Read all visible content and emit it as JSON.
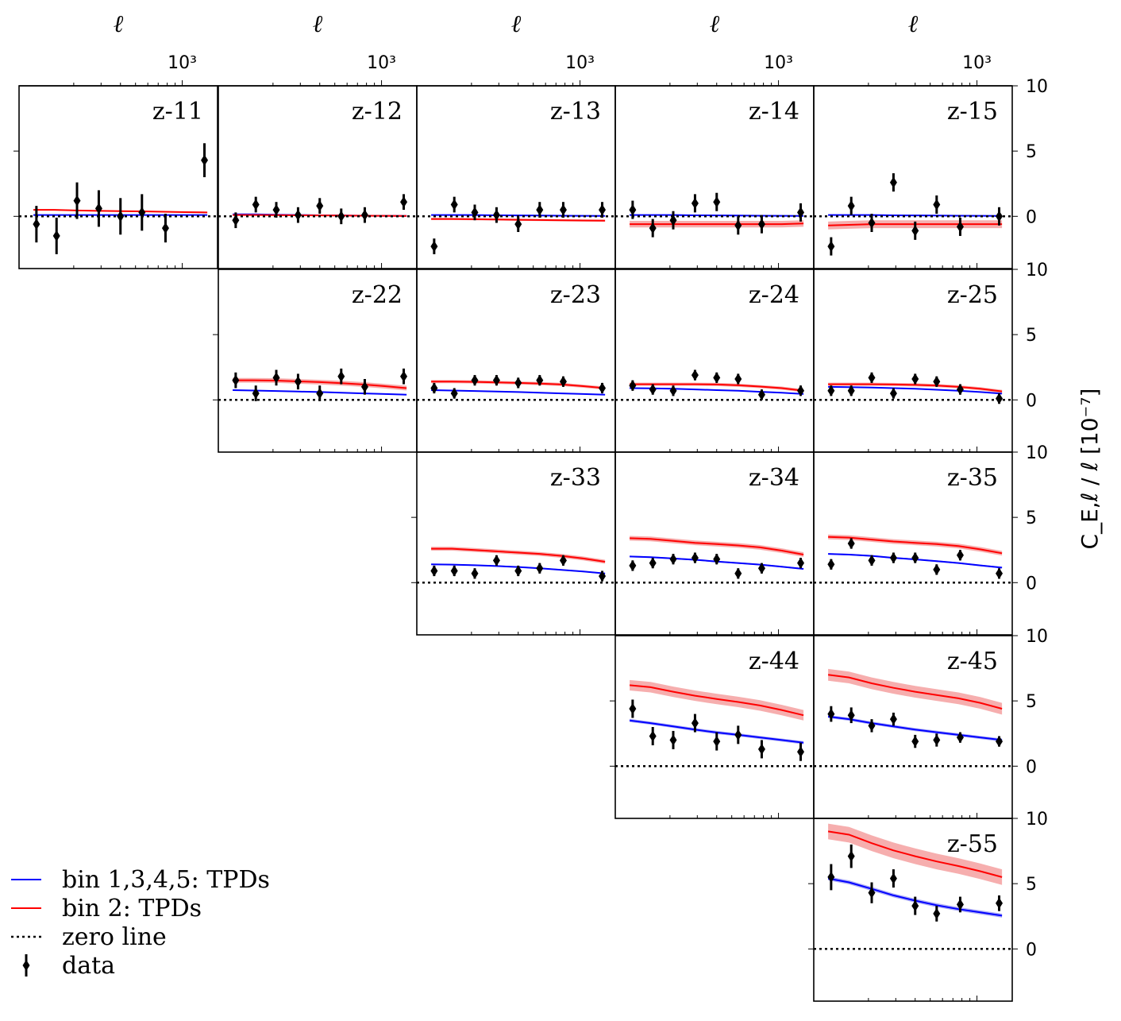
{
  "chart_data": {
    "type": "line",
    "x_scale": "log",
    "x_axis_label": "ℓ",
    "x_tick_label": "10³",
    "y_axis_label": "C_E,ℓ / ℓ [10⁻⁷]",
    "y_ticks": [
      "10",
      "5",
      "0"
    ],
    "x_range": [
      100,
      1500
    ],
    "colors": {
      "blue": "#0000ff",
      "red": "#ff0000",
      "red_band": "#f4a0a0",
      "blue_band": "#a0a0f4",
      "data": "#000000"
    },
    "legend": {
      "placement": "lower-left",
      "entries": [
        {
          "label": "bin 1,3,4,5: TPDs",
          "style": "blue-line"
        },
        {
          "label": "bin 2: TPDs",
          "style": "red-line"
        },
        {
          "label": "zero line",
          "style": "dotted-line"
        },
        {
          "label": "data",
          "style": "errorbar-diamond"
        }
      ]
    },
    "data_x": [
      110,
      150,
      210,
      290,
      400,
      550,
      760,
      1050,
      1450
    ],
    "panels": [
      {
        "id": "z-11",
        "label": "z-11",
        "row": 0,
        "col": 0,
        "theory_color": "red",
        "blue": [
          0.1,
          0.1,
          0.1,
          0.1,
          0.1,
          0.1,
          0.1,
          0.1,
          0.1
        ],
        "red": [
          0.5,
          0.5,
          0.45,
          0.42,
          0.4,
          0.38,
          0.35,
          0.32,
          0.3
        ],
        "red_band": 0.05,
        "blue_band": 0.03,
        "data": [
          -0.6,
          -1.5,
          1.2,
          0.6,
          0.0,
          0.3,
          -0.9,
          4.3
        ],
        "err": [
          1.4,
          1.4,
          1.4,
          1.4,
          1.4,
          1.4,
          1.1,
          1.3
        ]
      },
      {
        "id": "z-12",
        "label": "z-12",
        "row": 0,
        "col": 1,
        "blue": [
          0.15,
          0.15,
          0.12,
          0.1,
          0.08,
          0.07,
          0.05,
          0.04,
          0.03
        ],
        "red": [
          0.1,
          0.1,
          0.09,
          0.08,
          0.07,
          0.06,
          0.05,
          0.04,
          0.03
        ],
        "red_band": 0.05,
        "blue_band": 0.03,
        "data": [
          -0.3,
          0.9,
          0.5,
          0.1,
          0.8,
          0.0,
          0.1,
          1.1
        ],
        "err": [
          0.6,
          0.6,
          0.6,
          0.6,
          0.6,
          0.6,
          0.6,
          0.6
        ]
      },
      {
        "id": "z-13",
        "label": "z-13",
        "row": 0,
        "col": 2,
        "blue": [
          0.1,
          0.1,
          0.1,
          0.08,
          0.07,
          0.06,
          0.05,
          0.04,
          0.03
        ],
        "red": [
          -0.2,
          -0.2,
          -0.22,
          -0.24,
          -0.26,
          -0.28,
          -0.3,
          -0.32,
          -0.33
        ],
        "red_band": 0.08,
        "blue_band": 0.03,
        "data": [
          -2.3,
          0.9,
          0.3,
          0.1,
          -0.6,
          0.5,
          0.5,
          0.5
        ],
        "err": [
          0.6,
          0.6,
          0.6,
          0.6,
          0.6,
          0.6,
          0.6,
          0.6
        ]
      },
      {
        "id": "z-14",
        "label": "z-14",
        "row": 0,
        "col": 3,
        "blue": [
          0.1,
          0.1,
          0.1,
          0.08,
          0.07,
          0.06,
          0.05,
          0.04,
          0.03
        ],
        "red": [
          -0.6,
          -0.6,
          -0.6,
          -0.6,
          -0.6,
          -0.6,
          -0.6,
          -0.6,
          -0.55
        ],
        "red_band": 0.25,
        "blue_band": 0.05,
        "data": [
          0.5,
          -0.9,
          -0.3,
          1.0,
          1.1,
          -0.7,
          -0.6,
          0.3
        ],
        "err": [
          0.7,
          0.7,
          0.7,
          0.7,
          0.7,
          0.7,
          0.7,
          0.7
        ]
      },
      {
        "id": "z-15",
        "label": "z-15",
        "row": 0,
        "col": 4,
        "blue": [
          0.1,
          0.1,
          0.1,
          0.08,
          0.07,
          0.06,
          0.05,
          0.04,
          0.03
        ],
        "red": [
          -0.7,
          -0.65,
          -0.6,
          -0.6,
          -0.6,
          -0.6,
          -0.6,
          -0.6,
          -0.6
        ],
        "red_band": 0.3,
        "blue_band": 0.05,
        "data": [
          -2.3,
          0.8,
          -0.5,
          2.6,
          -1.1,
          0.9,
          -0.8,
          0.0
        ],
        "err": [
          0.7,
          0.7,
          0.7,
          0.7,
          0.7,
          0.7,
          0.7,
          0.7
        ]
      },
      {
        "id": "z-22",
        "label": "z-22",
        "row": 1,
        "col": 1,
        "blue": [
          0.75,
          0.72,
          0.68,
          0.64,
          0.6,
          0.55,
          0.5,
          0.45,
          0.4
        ],
        "red": [
          1.5,
          1.5,
          1.48,
          1.42,
          1.36,
          1.28,
          1.18,
          1.05,
          0.9
        ],
        "red_band": 0.18,
        "blue_band": 0.04,
        "data": [
          1.5,
          0.5,
          1.7,
          1.4,
          0.5,
          1.8,
          1.0,
          1.8
        ],
        "err": [
          0.6,
          0.6,
          0.6,
          0.6,
          0.6,
          0.6,
          0.6,
          0.6
        ]
      },
      {
        "id": "z-23",
        "label": "z-23",
        "row": 1,
        "col": 2,
        "blue": [
          0.75,
          0.72,
          0.68,
          0.64,
          0.6,
          0.55,
          0.5,
          0.45,
          0.4
        ],
        "red": [
          1.4,
          1.4,
          1.38,
          1.34,
          1.3,
          1.25,
          1.18,
          1.05,
          0.9
        ],
        "red_band": 0.12,
        "blue_band": 0.04,
        "data": [
          0.9,
          0.5,
          1.5,
          1.5,
          1.3,
          1.5,
          1.4,
          0.9
        ],
        "err": [
          0.4,
          0.4,
          0.4,
          0.4,
          0.4,
          0.4,
          0.4,
          0.4
        ]
      },
      {
        "id": "z-24",
        "label": "z-24",
        "row": 1,
        "col": 3,
        "blue": [
          0.9,
          0.88,
          0.85,
          0.8,
          0.75,
          0.7,
          0.62,
          0.55,
          0.45
        ],
        "red": [
          1.2,
          1.2,
          1.2,
          1.2,
          1.18,
          1.12,
          1.02,
          0.9,
          0.7
        ],
        "red_band": 0.12,
        "blue_band": 0.04,
        "data": [
          1.1,
          0.8,
          0.7,
          1.9,
          1.7,
          1.6,
          0.4,
          0.7
        ],
        "err": [
          0.4,
          0.4,
          0.4,
          0.4,
          0.4,
          0.4,
          0.4,
          0.4
        ]
      },
      {
        "id": "z-25",
        "label": "z-25",
        "row": 1,
        "col": 4,
        "blue": [
          1.0,
          0.98,
          0.95,
          0.9,
          0.85,
          0.78,
          0.7,
          0.6,
          0.48
        ],
        "red": [
          1.2,
          1.2,
          1.2,
          1.18,
          1.15,
          1.1,
          1.0,
          0.85,
          0.65
        ],
        "red_band": 0.12,
        "blue_band": 0.04,
        "data": [
          0.7,
          0.7,
          1.7,
          0.5,
          1.6,
          1.4,
          0.8,
          0.1
        ],
        "err": [
          0.4,
          0.4,
          0.4,
          0.4,
          0.4,
          0.4,
          0.4,
          0.4
        ]
      },
      {
        "id": "z-33",
        "label": "z-33",
        "row": 2,
        "col": 2,
        "blue": [
          1.4,
          1.38,
          1.33,
          1.27,
          1.2,
          1.1,
          0.98,
          0.85,
          0.7
        ],
        "red": [
          2.6,
          2.6,
          2.5,
          2.4,
          2.3,
          2.2,
          2.05,
          1.85,
          1.6
        ],
        "red_band": 0.15,
        "blue_band": 0.05,
        "data": [
          0.9,
          0.9,
          0.7,
          1.7,
          0.9,
          1.1,
          1.7,
          0.5
        ],
        "err": [
          0.4,
          0.4,
          0.4,
          0.4,
          0.4,
          0.4,
          0.4,
          0.4
        ]
      },
      {
        "id": "z-34",
        "label": "z-34",
        "row": 2,
        "col": 3,
        "blue": [
          2.0,
          1.95,
          1.85,
          1.75,
          1.62,
          1.5,
          1.38,
          1.22,
          1.05
        ],
        "red": [
          3.4,
          3.35,
          3.2,
          3.05,
          2.95,
          2.85,
          2.7,
          2.45,
          2.15
        ],
        "red_band": 0.18,
        "blue_band": 0.06,
        "data": [
          1.3,
          1.5,
          1.8,
          1.9,
          1.8,
          0.7,
          1.1,
          1.5
        ],
        "err": [
          0.4,
          0.4,
          0.4,
          0.4,
          0.4,
          0.4,
          0.4,
          0.4
        ]
      },
      {
        "id": "z-35",
        "label": "z-35",
        "row": 2,
        "col": 4,
        "blue": [
          2.2,
          2.15,
          2.05,
          1.9,
          1.78,
          1.65,
          1.5,
          1.32,
          1.15
        ],
        "red": [
          3.5,
          3.45,
          3.3,
          3.15,
          3.05,
          2.95,
          2.8,
          2.55,
          2.25
        ],
        "red_band": 0.18,
        "blue_band": 0.06,
        "data": [
          1.4,
          3.0,
          1.7,
          1.9,
          1.9,
          1.0,
          2.1,
          0.7
        ],
        "err": [
          0.4,
          0.4,
          0.4,
          0.4,
          0.4,
          0.4,
          0.4,
          0.4
        ]
      },
      {
        "id": "z-44",
        "label": "z-44",
        "row": 3,
        "col": 3,
        "blue": [
          3.5,
          3.3,
          3.05,
          2.8,
          2.58,
          2.4,
          2.2,
          2.0,
          1.8
        ],
        "red": [
          6.2,
          6.05,
          5.7,
          5.4,
          5.15,
          4.92,
          4.65,
          4.3,
          3.9
        ],
        "red_band": 0.4,
        "blue_band": 0.12,
        "data": [
          4.4,
          2.3,
          2.0,
          3.3,
          1.9,
          2.4,
          1.3,
          1.1
        ],
        "err": [
          0.7,
          0.7,
          0.7,
          0.7,
          0.7,
          0.7,
          0.7,
          0.7
        ]
      },
      {
        "id": "z-45",
        "label": "z-45",
        "row": 3,
        "col": 4,
        "blue": [
          3.8,
          3.6,
          3.3,
          3.05,
          2.8,
          2.6,
          2.4,
          2.2,
          2.0
        ],
        "red": [
          7.0,
          6.8,
          6.35,
          6.0,
          5.7,
          5.45,
          5.2,
          4.85,
          4.4
        ],
        "red_band": 0.45,
        "blue_band": 0.12,
        "data": [
          4.0,
          3.9,
          3.1,
          3.6,
          1.9,
          2.0,
          2.2,
          1.9
        ],
        "err": [
          0.6,
          0.6,
          0.5,
          0.5,
          0.5,
          0.5,
          0.4,
          0.4
        ]
      },
      {
        "id": "z-55",
        "label": "z-55",
        "row": 4,
        "col": 4,
        "blue": [
          5.4,
          5.1,
          4.6,
          4.1,
          3.7,
          3.35,
          3.05,
          2.8,
          2.55
        ],
        "red": [
          9.0,
          8.75,
          8.1,
          7.55,
          7.1,
          6.7,
          6.35,
          5.95,
          5.5
        ],
        "red_band": 0.6,
        "blue_band": 0.15,
        "data": [
          5.5,
          7.1,
          4.3,
          5.4,
          3.3,
          2.7,
          3.4,
          3.5
        ],
        "err": [
          1.0,
          0.9,
          0.8,
          0.7,
          0.7,
          0.6,
          0.6,
          0.6
        ]
      }
    ]
  }
}
